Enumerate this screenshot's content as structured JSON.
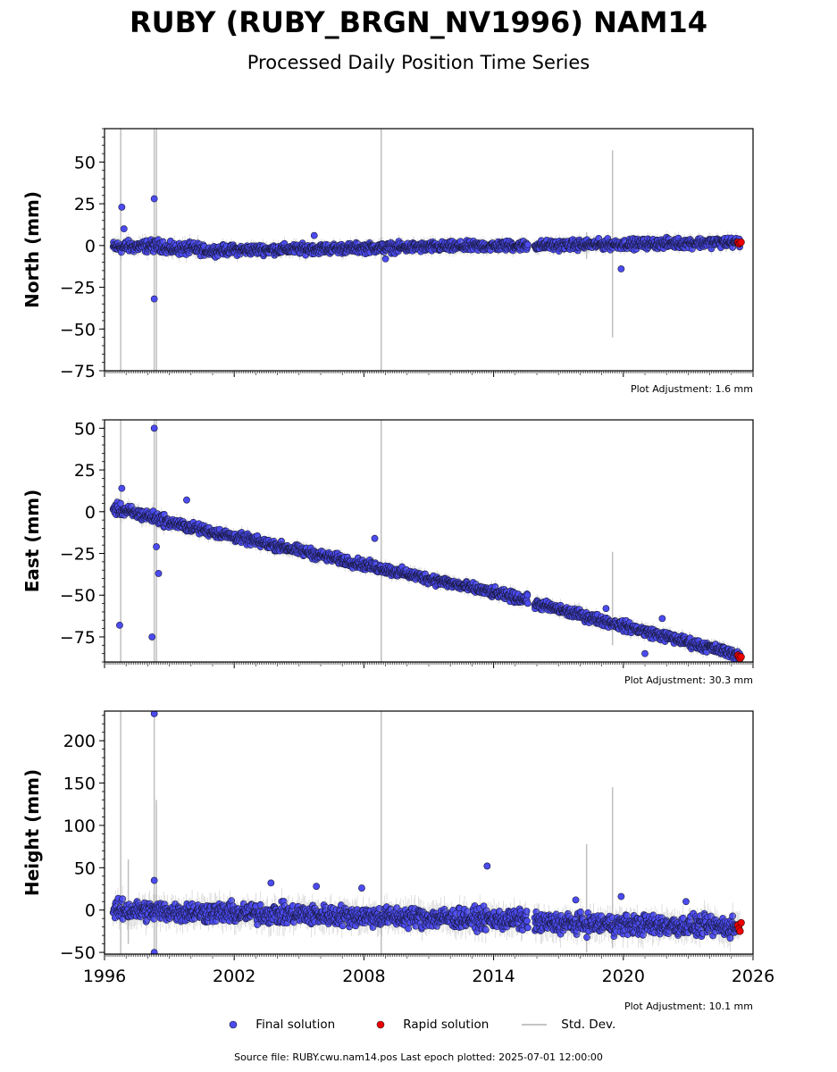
{
  "title": "RUBY (RUBY_BRGN_NV1996) NAM14",
  "subtitle": "Processed Daily Position Time Series",
  "footer": "Source file: RUBY.cwu.nam14.pos  Last epoch plotted: 2025-07-01 12:00:00",
  "legend": {
    "final": "Final solution",
    "rapid": "Rapid solution",
    "std": "Std. Dev."
  },
  "colors": {
    "final": "#4b4bf0",
    "rapid": "#ee0000",
    "std": "#b0b0b0"
  },
  "chart_data": [
    {
      "type": "scatter",
      "ylabel": "North (mm)",
      "ylim": [
        -75,
        70
      ],
      "yticks": [
        50,
        25,
        0,
        -25,
        -50,
        -75
      ],
      "xlim": [
        1996,
        2026
      ],
      "adjustment": "Plot Adjustment: 1.6 mm",
      "segments": [
        {
          "x0": 1996.4,
          "y0": -1,
          "x1": 1998.8,
          "y1": 0,
          "noise": 3
        },
        {
          "x0": 1998.8,
          "y0": -2,
          "x1": 2000.5,
          "y1": -2,
          "noise": 3
        },
        {
          "x0": 2000.5,
          "y0": -3,
          "x1": 2015.6,
          "y1": 0,
          "noise": 2.5
        },
        {
          "x0": 2015.9,
          "y0": 0,
          "x1": 2025.4,
          "y1": 2,
          "noise": 2.5
        }
      ],
      "outliers": [
        [
          1996.8,
          23
        ],
        [
          1998.3,
          28
        ],
        [
          1998.3,
          -32
        ],
        [
          1996.9,
          10
        ],
        [
          2005.7,
          6
        ],
        [
          2019.9,
          -14
        ],
        [
          2009,
          -8
        ]
      ],
      "std_spikes": [
        [
          1996.75,
          -75,
          70
        ],
        [
          1998.3,
          -75,
          70
        ],
        [
          1998.4,
          -75,
          70
        ],
        [
          2008.8,
          -75,
          70
        ],
        [
          2019.5,
          -55,
          57
        ],
        [
          2018.3,
          -8,
          8
        ]
      ],
      "rapid": [
        [
          2025.3,
          2
        ],
        [
          2025.35,
          1
        ],
        [
          2025.4,
          1.5
        ],
        [
          2025.45,
          2
        ]
      ]
    },
    {
      "type": "scatter",
      "ylabel": "East (mm)",
      "ylim": [
        -90,
        55
      ],
      "yticks": [
        50,
        25,
        0,
        -25,
        -50,
        -75
      ],
      "xlim": [
        1996,
        2026
      ],
      "adjustment": "Plot Adjustment: 30.3 mm",
      "segments": [
        {
          "x0": 1996.4,
          "y0": 2,
          "x1": 1998.8,
          "y1": -5,
          "noise": 3
        },
        {
          "x0": 1998.8,
          "y0": -6,
          "x1": 2015.6,
          "y1": -53,
          "noise": 2.5
        },
        {
          "x0": 2015.9,
          "y0": -55,
          "x1": 2025.4,
          "y1": -86,
          "noise": 2.5
        }
      ],
      "outliers": [
        [
          1996.8,
          14
        ],
        [
          1996.7,
          -68
        ],
        [
          1998.3,
          50
        ],
        [
          1998.2,
          -75
        ],
        [
          1998.4,
          -21
        ],
        [
          1998.5,
          -37
        ],
        [
          1999.8,
          7
        ],
        [
          2008.5,
          -16
        ],
        [
          2021.8,
          -64
        ],
        [
          2019.2,
          -58
        ],
        [
          2021,
          -85
        ]
      ],
      "std_spikes": [
        [
          1996.75,
          -90,
          55
        ],
        [
          1998.3,
          -90,
          55
        ],
        [
          1998.4,
          -90,
          55
        ],
        [
          2008.8,
          -90,
          55
        ],
        [
          2019.5,
          -80,
          -24
        ],
        [
          2018.3,
          -63,
          -58
        ]
      ],
      "rapid": [
        [
          2025.3,
          -86
        ],
        [
          2025.35,
          -87
        ],
        [
          2025.4,
          -88
        ],
        [
          2025.45,
          -87
        ]
      ]
    },
    {
      "type": "scatter",
      "ylabel": "Height (mm)",
      "xlabel": "",
      "ylim": [
        -52,
        235
      ],
      "yticks": [
        200,
        150,
        100,
        50,
        0,
        -50
      ],
      "xlim": [
        1996,
        2026
      ],
      "xticks": [
        1996,
        2002,
        2008,
        2014,
        2020,
        2026
      ],
      "adjustment": "Plot Adjustment: 10.1 mm",
      "segments": [
        {
          "x0": 1996.4,
          "y0": 0,
          "x1": 2015.6,
          "y1": -12,
          "noise": 10
        },
        {
          "x0": 2015.9,
          "y0": -15,
          "x1": 2025.4,
          "y1": -20,
          "noise": 10
        }
      ],
      "outliers": [
        [
          1998.3,
          232
        ],
        [
          1998.3,
          35
        ],
        [
          1998.3,
          -50
        ],
        [
          2003.7,
          32
        ],
        [
          2013.7,
          52
        ],
        [
          2019.9,
          16
        ],
        [
          2022.9,
          10
        ],
        [
          2005.8,
          28
        ],
        [
          2007.9,
          26
        ],
        [
          2017.8,
          12
        ]
      ],
      "std_spikes": [
        [
          1996.75,
          -52,
          235
        ],
        [
          1998.3,
          -52,
          235
        ],
        [
          1998.4,
          -52,
          130
        ],
        [
          2008.8,
          -52,
          235
        ],
        [
          2019.5,
          -45,
          145
        ],
        [
          2018.3,
          -50,
          78
        ],
        [
          1997.1,
          -40,
          60
        ]
      ],
      "rapid": [
        [
          2025.3,
          -18
        ],
        [
          2025.35,
          -22
        ],
        [
          2025.4,
          -25
        ],
        [
          2025.45,
          -15
        ]
      ]
    }
  ]
}
